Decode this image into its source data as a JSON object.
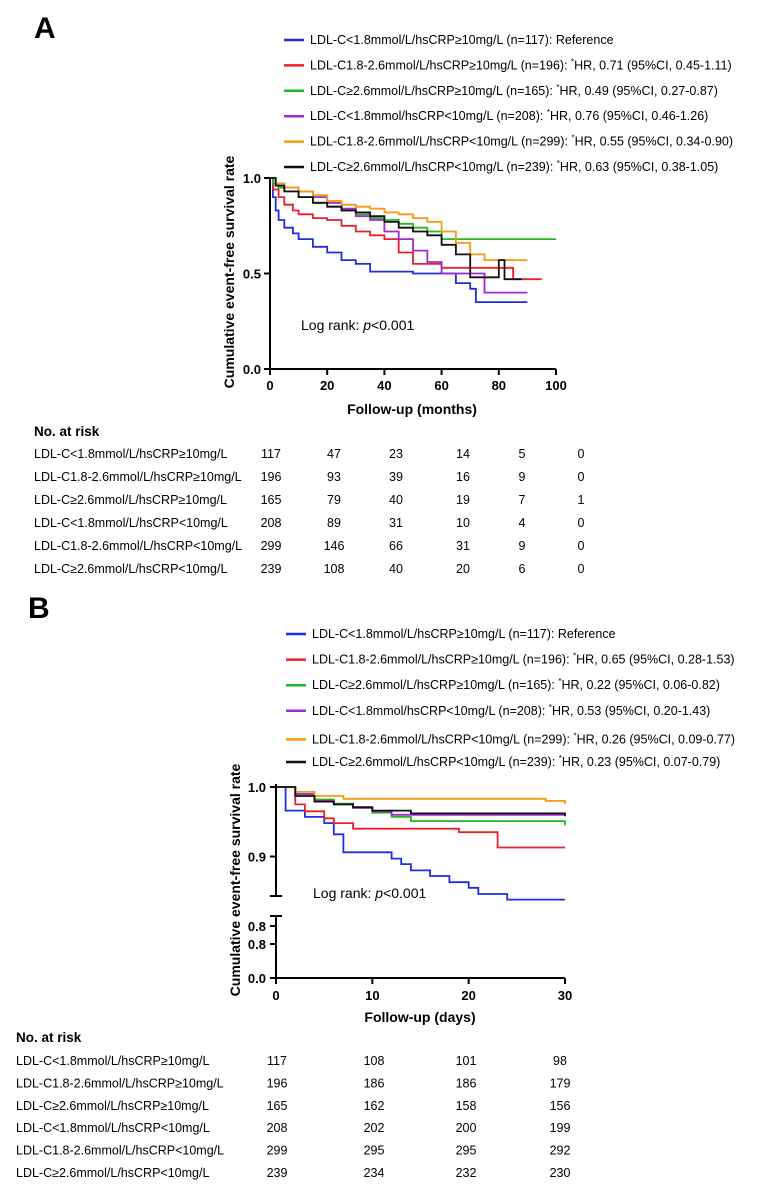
{
  "chart_data": [
    {
      "type": "line",
      "panel": "A",
      "xlabel": "Follow-up (months)",
      "ylabel": "Cumulative  event-free survival rate",
      "xlim": [
        0,
        100
      ],
      "ylim": [
        0,
        1
      ],
      "x_ticks": [
        "0",
        "20",
        "40",
        "60",
        "80",
        "100"
      ],
      "y_ticks": [
        "0.0",
        "0.5",
        "1.0"
      ],
      "annotation": "Log rank: ",
      "annotation_p": "p",
      "annotation_val": "<0.001",
      "legend_position": "top-right",
      "series": [
        {
          "legend": "LDL-C<1.8mmol/L/hsCRP≥10mg/L (n=117): Reference",
          "hr": "",
          "color": "#1f2fe0",
          "points": [
            [
              0,
              1.0
            ],
            [
              1,
              0.9
            ],
            [
              2,
              0.83
            ],
            [
              3,
              0.78
            ],
            [
              5,
              0.74
            ],
            [
              8,
              0.71
            ],
            [
              10,
              0.68
            ],
            [
              15,
              0.64
            ],
            [
              20,
              0.61
            ],
            [
              25,
              0.57
            ],
            [
              30,
              0.55
            ],
            [
              35,
              0.51
            ],
            [
              40,
              0.51
            ],
            [
              50,
              0.5
            ],
            [
              60,
              0.5
            ],
            [
              65,
              0.45
            ],
            [
              70,
              0.42
            ],
            [
              72,
              0.35
            ],
            [
              80,
              0.35
            ],
            [
              90,
              0.35
            ]
          ]
        },
        {
          "legend": "LDL-C1.8-2.6mmol/L/hsCRP≥10mg/L (n=196): ",
          "hr": "HR, 0.71 (95%CI, 0.45-1.11)",
          "color": "#e8202a",
          "points": [
            [
              0,
              1.0
            ],
            [
              1,
              0.94
            ],
            [
              3,
              0.9
            ],
            [
              5,
              0.86
            ],
            [
              8,
              0.83
            ],
            [
              10,
              0.81
            ],
            [
              15,
              0.79
            ],
            [
              20,
              0.78
            ],
            [
              25,
              0.75
            ],
            [
              30,
              0.72
            ],
            [
              35,
              0.7
            ],
            [
              40,
              0.68
            ],
            [
              45,
              0.61
            ],
            [
              50,
              0.55
            ],
            [
              55,
              0.55
            ],
            [
              60,
              0.53
            ],
            [
              70,
              0.53
            ],
            [
              80,
              0.53
            ],
            [
              85,
              0.47
            ],
            [
              95,
              0.47
            ]
          ]
        },
        {
          "legend": "LDL-C≥2.6mmol/L/hsCRP≥10mg/L (n=165): ",
          "hr": "HR, 0.49 (95%CI, 0.27-0.87)",
          "color": "#22b820",
          "points": [
            [
              0,
              1.0
            ],
            [
              1,
              0.97
            ],
            [
              3,
              0.95
            ],
            [
              5,
              0.93
            ],
            [
              10,
              0.9
            ],
            [
              15,
              0.87
            ],
            [
              20,
              0.85
            ],
            [
              25,
              0.83
            ],
            [
              30,
              0.81
            ],
            [
              35,
              0.79
            ],
            [
              40,
              0.78
            ],
            [
              45,
              0.76
            ],
            [
              50,
              0.74
            ],
            [
              55,
              0.72
            ],
            [
              60,
              0.68
            ],
            [
              65,
              0.68
            ],
            [
              80,
              0.68
            ],
            [
              100,
              0.68
            ]
          ]
        },
        {
          "legend": "LDL-C<1.8mmol/hsCRP<10mg/L (n=208): ",
          "hr": "HR, 0.76 (95%CI, 0.46-1.26)",
          "color": "#a128d8",
          "points": [
            [
              0,
              1.0
            ],
            [
              2,
              0.97
            ],
            [
              5,
              0.95
            ],
            [
              10,
              0.93
            ],
            [
              15,
              0.9
            ],
            [
              20,
              0.87
            ],
            [
              25,
              0.84
            ],
            [
              30,
              0.8
            ],
            [
              35,
              0.78
            ],
            [
              40,
              0.72
            ],
            [
              45,
              0.68
            ],
            [
              50,
              0.62
            ],
            [
              55,
              0.56
            ],
            [
              60,
              0.5
            ],
            [
              70,
              0.5
            ],
            [
              75,
              0.4
            ],
            [
              80,
              0.4
            ],
            [
              90,
              0.4
            ]
          ]
        },
        {
          "legend": "LDL-C1.8-2.6mmol/L/hsCRP<10mg/L (n=299): ",
          "hr": "HR, 0.55 (95%CI, 0.34-0.90)",
          "color": "#f59a14",
          "points": [
            [
              0,
              1.0
            ],
            [
              2,
              0.97
            ],
            [
              5,
              0.95
            ],
            [
              10,
              0.93
            ],
            [
              15,
              0.91
            ],
            [
              20,
              0.88
            ],
            [
              25,
              0.86
            ],
            [
              30,
              0.85
            ],
            [
              35,
              0.84
            ],
            [
              40,
              0.82
            ],
            [
              45,
              0.81
            ],
            [
              50,
              0.79
            ],
            [
              55,
              0.77
            ],
            [
              60,
              0.72
            ],
            [
              65,
              0.66
            ],
            [
              70,
              0.6
            ],
            [
              75,
              0.57
            ],
            [
              80,
              0.57
            ],
            [
              90,
              0.57
            ]
          ]
        },
        {
          "legend": "LDL-C≥2.6mmol/L/hsCRP<10mg/L (n=239): ",
          "hr": "HR, 0.63 (95%CI, 0.38-1.05)",
          "color": "#111111",
          "points": [
            [
              0,
              1.0
            ],
            [
              2,
              0.96
            ],
            [
              5,
              0.93
            ],
            [
              10,
              0.9
            ],
            [
              15,
              0.87
            ],
            [
              20,
              0.85
            ],
            [
              25,
              0.83
            ],
            [
              30,
              0.82
            ],
            [
              35,
              0.8
            ],
            [
              40,
              0.77
            ],
            [
              45,
              0.74
            ],
            [
              50,
              0.72
            ],
            [
              55,
              0.7
            ],
            [
              60,
              0.65
            ],
            [
              65,
              0.6
            ],
            [
              70,
              0.48
            ],
            [
              75,
              0.48
            ],
            [
              80,
              0.57
            ],
            [
              82,
              0.47
            ],
            [
              88,
              0.47
            ]
          ]
        }
      ],
      "risk_header": "No. at risk",
      "risk_table": [
        {
          "label": "LDL-C<1.8mmol/L/hsCRP≥10mg/L",
          "values": [
            "117",
            "47",
            "23",
            "14",
            "5",
            "0"
          ]
        },
        {
          "label": "LDL-C1.8-2.6mmol/L/hsCRP≥10mg/L",
          "values": [
            "196",
            "93",
            "39",
            "16",
            "9",
            "0"
          ]
        },
        {
          "label": "LDL-C≥2.6mmol/L/hsCRP≥10mg/L",
          "values": [
            "165",
            "79",
            "40",
            "19",
            "7",
            "1"
          ]
        },
        {
          "label": "LDL-C<1.8mmol/L/hsCRP<10mg/L",
          "values": [
            "208",
            "89",
            "31",
            "10",
            "4",
            "0"
          ]
        },
        {
          "label": "LDL-C1.8-2.6mmol/L/hsCRP<10mg/L",
          "values": [
            "299",
            "146",
            "66",
            "31",
            "9",
            "0"
          ]
        },
        {
          "label": "LDL-C≥2.6mmol/L/hsCRP<10mg/L",
          "values": [
            "239",
            "108",
            "40",
            "20",
            "6",
            "0"
          ]
        }
      ]
    },
    {
      "type": "line",
      "panel": "B",
      "xlabel": "Follow-up (days)",
      "ylabel": "Cumulative  event-free survival rate",
      "xlim": [
        0,
        30
      ],
      "ylim_upper": [
        0.8,
        1.0
      ],
      "ylim_lower": [
        0.0,
        0.8
      ],
      "axis_break": true,
      "x_ticks": [
        "0",
        "10",
        "20",
        "30"
      ],
      "y_ticks_upper": [
        "0.8",
        "0.9",
        "1.0"
      ],
      "y_ticks_lower": [
        "0.0",
        "0.8"
      ],
      "annotation": "Log rank: ",
      "annotation_p": "p",
      "annotation_val": "<0.001",
      "legend_position": "top-right",
      "series": [
        {
          "legend": "LDL-C<1.8mmol/L/hsCRP≥10mg/L (n=117): Reference",
          "hr": "",
          "color": "#1f2fe0",
          "points": [
            [
              0,
              1.0
            ],
            [
              1,
              0.966
            ],
            [
              3,
              0.957
            ],
            [
              5,
              0.948
            ],
            [
              6,
              0.932
            ],
            [
              7,
              0.906
            ],
            [
              10,
              0.906
            ],
            [
              12,
              0.897
            ],
            [
              13,
              0.889
            ],
            [
              14,
              0.88
            ],
            [
              16,
              0.872
            ],
            [
              18,
              0.863
            ],
            [
              20,
              0.855
            ],
            [
              21,
              0.846
            ],
            [
              24,
              0.838
            ],
            [
              30,
              0.838
            ]
          ]
        },
        {
          "legend": "LDL-C1.8-2.6mmol/L/hsCRP≥10mg/L (n=196): ",
          "hr": "HR, 0.65 (95%CI, 0.28-1.53)",
          "color": "#e8202a",
          "points": [
            [
              0,
              1.0
            ],
            [
              2,
              0.975
            ],
            [
              3,
              0.965
            ],
            [
              5,
              0.955
            ],
            [
              6,
              0.948
            ],
            [
              8,
              0.94
            ],
            [
              12,
              0.94
            ],
            [
              17,
              0.94
            ],
            [
              19,
              0.935
            ],
            [
              21,
              0.935
            ],
            [
              23,
              0.913
            ],
            [
              30,
              0.913
            ]
          ]
        },
        {
          "legend": "LDL-C≥2.6mmol/L/hsCRP≥10mg/L (n=165): ",
          "hr": "HR, 0.22 (95%CI, 0.06-0.82)",
          "color": "#22b820",
          "points": [
            [
              0,
              1.0
            ],
            [
              2,
              0.99
            ],
            [
              4,
              0.982
            ],
            [
              6,
              0.976
            ],
            [
              8,
              0.97
            ],
            [
              10,
              0.963
            ],
            [
              12,
              0.957
            ],
            [
              14,
              0.951
            ],
            [
              24,
              0.951
            ],
            [
              29,
              0.951
            ],
            [
              30,
              0.945
            ]
          ]
        },
        {
          "legend": "LDL-C<1.8mmol/hsCRP<10mg/L (n=208): ",
          "hr": "HR, 0.53 (95%CI, 0.20-1.43)",
          "color": "#a128d8",
          "points": [
            [
              0,
              1.0
            ],
            [
              2,
              0.99
            ],
            [
              4,
              0.98
            ],
            [
              6,
              0.975
            ],
            [
              8,
              0.97
            ],
            [
              10,
              0.965
            ],
            [
              12,
              0.96
            ],
            [
              15,
              0.96
            ],
            [
              22,
              0.96
            ],
            [
              30,
              0.96
            ]
          ]
        },
        {
          "legend": "LDL-C1.8-2.6mmol/L/hsCRP<10mg/L (n=299): ",
          "hr": "HR, 0.26 (95%CI, 0.09-0.77)",
          "color": "#f59a14",
          "points": [
            [
              0,
              1.0
            ],
            [
              2,
              0.993
            ],
            [
              4,
              0.987
            ],
            [
              7,
              0.983
            ],
            [
              15,
              0.983
            ],
            [
              26,
              0.983
            ],
            [
              28,
              0.98
            ],
            [
              30,
              0.976
            ]
          ]
        },
        {
          "legend": "LDL-C≥2.6mmol/L/hsCRP<10mg/L (n=239): ",
          "hr": "HR, 0.23 (95%CI, 0.07-0.79)",
          "color": "#111111",
          "points": [
            [
              0,
              1.0
            ],
            [
              2,
              0.987
            ],
            [
              4,
              0.979
            ],
            [
              6,
              0.975
            ],
            [
              8,
              0.971
            ],
            [
              10,
              0.966
            ],
            [
              14,
              0.962
            ],
            [
              25,
              0.962
            ],
            [
              30,
              0.958
            ]
          ]
        }
      ],
      "risk_header": "No. at risk",
      "risk_table": [
        {
          "label": "LDL-C<1.8mmol/L/hsCRP≥10mg/L",
          "values": [
            "117",
            "108",
            "101",
            "98"
          ]
        },
        {
          "label": "LDL-C1.8-2.6mmol/L/hsCRP≥10mg/L",
          "values": [
            "196",
            "186",
            "186",
            "179"
          ]
        },
        {
          "label": "LDL-C≥2.6mmol/L/hsCRP≥10mg/L",
          "values": [
            "165",
            "162",
            "158",
            "156"
          ]
        },
        {
          "label": "LDL-C<1.8mmol/L/hsCRP<10mg/L",
          "values": [
            "208",
            "202",
            "200",
            "199"
          ]
        },
        {
          "label": "LDL-C1.8-2.6mmol/L/hsCRP<10mg/L",
          "values": [
            "299",
            "295",
            "295",
            "292"
          ]
        },
        {
          "label": "LDL-C≥2.6mmol/L/hsCRP<10mg/L",
          "values": [
            "239",
            "234",
            "232",
            "230"
          ]
        }
      ]
    }
  ],
  "hr_mark": "*"
}
